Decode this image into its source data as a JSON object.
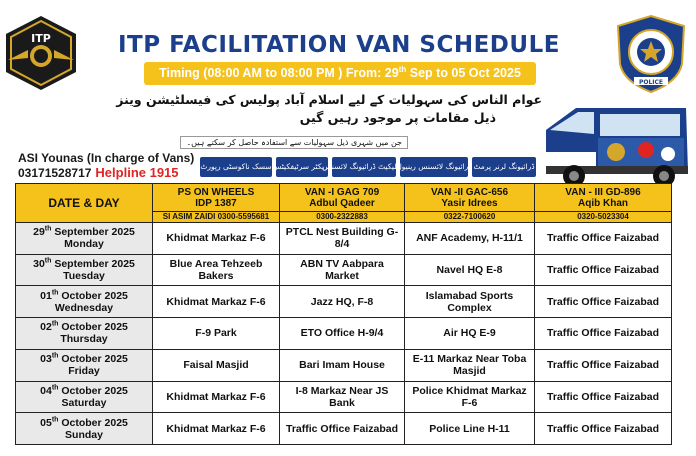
{
  "header": {
    "logo_left_text": "ITP",
    "logo_right_text": "ISLAMABAD CAPITAL TERRITORY POLICE",
    "title": "ITP FACILITATION VAN SCHEDULE",
    "timing_prefix": "Timing (08:00 AM to 08:00 PM ) From: 29",
    "timing_sup": "th",
    "timing_suffix": " Sep to 05 Oct 2025",
    "urdu_line_1": "عوام الناس کی سہولیات کے لیے اسلام آباد پولیس کی فیسلٹیشن وینز",
    "urdu_line_2": "ذیل مقامات پر موجود رہیں گیں",
    "urdu_small": "جن میں شہری ذیل سہولیات سے استفادہ حاصل کر سکتے ہیں۔",
    "incharge": "ASI Younas (In charge of Vans)",
    "phone": "03171528717",
    "helpline": "Helpline 1915"
  },
  "services": [
    "سسک ناکوسٹی رپورٹ",
    "کریکٹر سرٹیفکیٹس",
    "ڈوپلیکیٹ ڈرائیونگ لائسنس",
    "ڈرائیونگ لائسنس رینیول",
    "ڈرائیونگ لرنر پرمٹ"
  ],
  "table": {
    "date_header": "DATE & DAY",
    "columns": [
      {
        "line1": "PS ON WHEELS",
        "line2": "IDP 1387",
        "contact": "SI ASIM ZAIDI 0300-5595681"
      },
      {
        "line1": "VAN -I GAG 709",
        "line2": "Adbul Qadeer",
        "contact": "0300-2322883"
      },
      {
        "line1": "VAN -II GAC-656",
        "line2": "Yasir Idrees",
        "contact": "0322-7100620"
      },
      {
        "line1": "VAN - III GD-896",
        "line2": "Aqib Khan",
        "contact": "0320-5023304"
      }
    ],
    "rows": [
      {
        "day_num": "29",
        "suffix": "th",
        "month": " September 2025",
        "weekday": "Monday",
        "cells": [
          "Khidmat Markaz F-6",
          "PTCL Nest Building G-8/4",
          "ANF Academy, H-11/1",
          "Traffic Office Faizabad"
        ]
      },
      {
        "day_num": "30",
        "suffix": "th",
        "month": " September 2025",
        "weekday": "Tuesday",
        "cells": [
          "Blue Area Tehzeeb Bakers",
          "ABN TV Aabpara Market",
          "Navel HQ E-8",
          "Traffic Office Faizabad"
        ]
      },
      {
        "day_num": "01",
        "suffix": "th",
        "month": " October 2025",
        "weekday": "Wednesday",
        "cells": [
          "Khidmat Markaz F-6",
          "Jazz HQ, F-8",
          "Islamabad Sports Complex",
          "Traffic Office Faizabad"
        ]
      },
      {
        "day_num": "02",
        "suffix": "th",
        "month": " October 2025",
        "weekday": "Thursday",
        "cells": [
          "F-9 Park",
          "ETO Office H-9/4",
          "Air HQ E-9",
          "Traffic Office Faizabad"
        ]
      },
      {
        "day_num": "03",
        "suffix": "th",
        "month": " October 2025",
        "weekday": "Friday",
        "cells": [
          "Faisal Masjid",
          "Bari Imam House",
          "E-11 Markaz Near Toba Masjid",
          "Traffic Office Faizabad"
        ]
      },
      {
        "day_num": "04",
        "suffix": "th",
        "month": " October 2025",
        "weekday": "Saturday",
        "cells": [
          "Khidmat Markaz F-6",
          "I-8 Markaz Near JS Bank",
          "Police Khidmat Markaz F-6",
          "Traffic Office Faizabad"
        ]
      },
      {
        "day_num": "05",
        "suffix": "th",
        "month": " October 2025",
        "weekday": "Sunday",
        "cells": [
          "Khidmat Markaz F-6",
          "Traffic Office Faizabad",
          "Police Line H-11",
          "Traffic Office Faizabad"
        ]
      }
    ]
  },
  "colors": {
    "title_blue": "#1c3f8c",
    "accent_yellow": "#f5c21b",
    "helpline_red": "#e02424"
  }
}
